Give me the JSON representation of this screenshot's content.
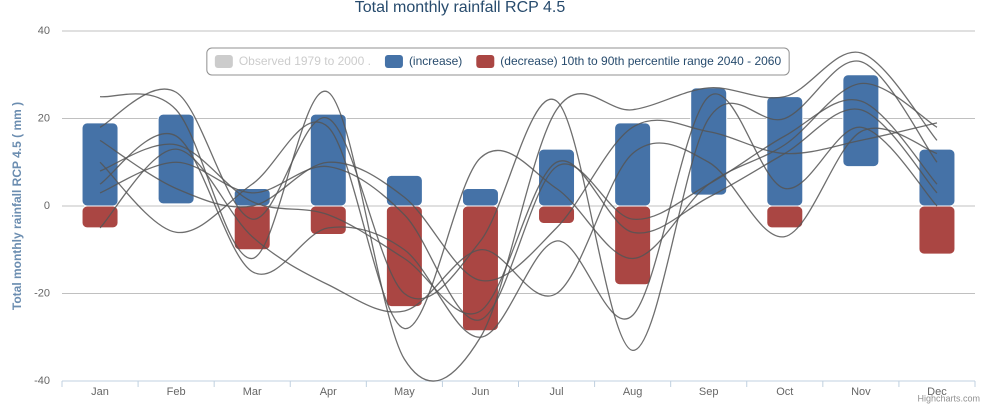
{
  "chart_data": {
    "type": "columnrange",
    "title": "Total monthly rainfall RCP 4.5",
    "y_axis_label": "Total monthly rainfall RCP 4.5 ( mm )",
    "credits": "Highcharts.com",
    "categories": [
      "Jan",
      "Feb",
      "Mar",
      "Apr",
      "May",
      "Jun",
      "Jul",
      "Aug",
      "Sep",
      "Oct",
      "Nov",
      "Dec"
    ],
    "ylim": [
      -40,
      40
    ],
    "yticks": [
      -40,
      -20,
      0,
      20,
      40
    ],
    "grid": true,
    "series": [
      {
        "name": "Observed 1979 to 2000 .",
        "color": "#cccccc",
        "visible": false
      },
      {
        "name": "(increase)",
        "color": "#4572a7",
        "low": [
          0,
          0.5,
          0,
          0,
          0,
          0,
          0,
          0,
          2.5,
          0,
          9,
          0
        ],
        "high": [
          19,
          21,
          4,
          21,
          7,
          4,
          13,
          19,
          27,
          25,
          30,
          13
        ]
      },
      {
        "name": "(decrease) 10th to 90th percentile range 2040 - 2060",
        "color": "#aa4643",
        "low": [
          -5,
          null,
          -10,
          -6.5,
          -23,
          -28.5,
          -4,
          -18,
          null,
          -5,
          null,
          -11
        ],
        "high": [
          0,
          null,
          0,
          0,
          0,
          0,
          0,
          0,
          null,
          0,
          null,
          0
        ]
      }
    ],
    "lines": [
      {
        "color": "#555555",
        "values": [
          25,
          22,
          -12,
          26,
          -35,
          -30,
          22,
          22,
          27,
          25,
          35,
          15
        ]
      },
      {
        "color": "#555555",
        "values": [
          18,
          26,
          -3,
          20,
          -20,
          -8,
          24,
          -33,
          20,
          20,
          33,
          10
        ]
      },
      {
        "color": "#555555",
        "values": [
          10,
          -6,
          5,
          18,
          -28,
          11,
          4,
          -12,
          5,
          14,
          28,
          18
        ]
      },
      {
        "color": "#555555",
        "values": [
          5,
          16,
          -15,
          -5,
          -10,
          -30,
          -8,
          -25,
          25,
          4,
          18,
          0
        ]
      },
      {
        "color": "#555555",
        "values": [
          -5,
          13,
          -7,
          -18,
          -24,
          -10,
          -20,
          12,
          10,
          -7,
          17,
          12
        ]
      },
      {
        "color": "#555555",
        "values": [
          3,
          10,
          3,
          9,
          -2,
          -26,
          9,
          -3,
          5,
          16,
          24,
          5
        ]
      },
      {
        "color": "#555555",
        "values": [
          15,
          4,
          0,
          10,
          2,
          -17,
          -5,
          18,
          17,
          12,
          15,
          19
        ]
      },
      {
        "color": "#555555",
        "values": [
          8,
          14,
          1,
          -2,
          -12,
          -24,
          10,
          -6,
          2,
          12,
          22,
          3
        ]
      }
    ]
  }
}
